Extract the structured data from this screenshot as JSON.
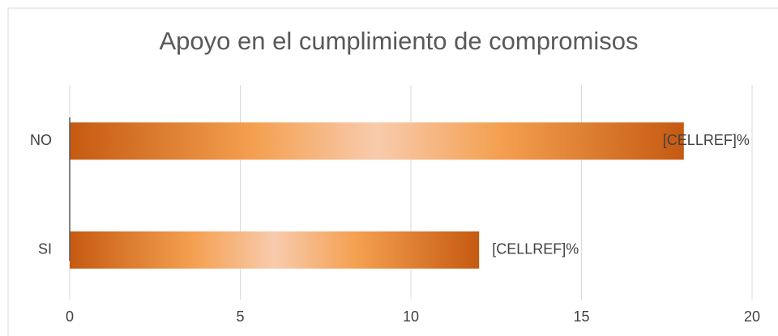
{
  "chart_data": {
    "type": "hbar",
    "title": "Apoyo en el cumplimiento de compromisos",
    "categories": [
      "NO",
      "SI"
    ],
    "values": [
      18,
      12
    ],
    "value_labels": [
      "[CELLREF]%",
      "[CELLREF]%"
    ],
    "color": "#c55a11",
    "xlim": [
      0,
      20
    ],
    "xticks": [
      0,
      5,
      10,
      15,
      20
    ],
    "grid": true
  }
}
